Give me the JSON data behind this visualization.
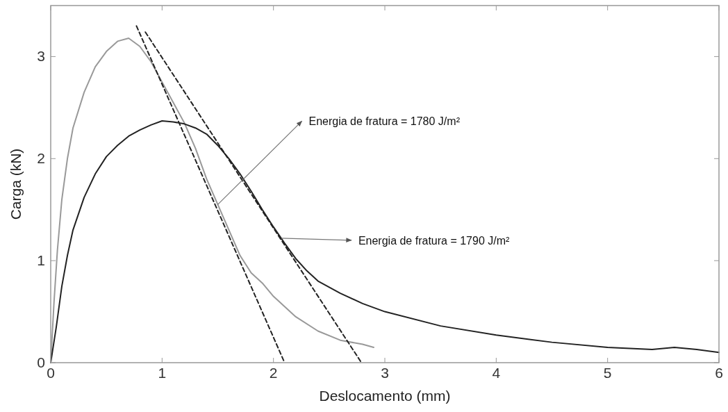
{
  "chart_data": {
    "type": "line",
    "xlabel": "Deslocamento (mm)",
    "ylabel": "Carga (kN)",
    "xlim": [
      0,
      6
    ],
    "ylim": [
      0,
      3.5
    ],
    "xticks": [
      0,
      1,
      2,
      3,
      4,
      5,
      6
    ],
    "yticks": [
      0,
      1,
      2,
      3
    ],
    "grid": false,
    "marker": "none",
    "series": [
      {
        "color": "#999999",
        "x": [
          0,
          0.03,
          0.06,
          0.1,
          0.15,
          0.2,
          0.3,
          0.4,
          0.5,
          0.6,
          0.7,
          0.8,
          0.9,
          1.0,
          1.1,
          1.2,
          1.3,
          1.4,
          1.5,
          1.6,
          1.7,
          1.8,
          1.9,
          2.0,
          2.2,
          2.4,
          2.6,
          2.8,
          2.9
        ],
        "values": [
          0,
          0.6,
          1.1,
          1.6,
          2.0,
          2.3,
          2.65,
          2.9,
          3.05,
          3.15,
          3.18,
          3.1,
          2.95,
          2.75,
          2.55,
          2.35,
          2.1,
          1.8,
          1.55,
          1.3,
          1.05,
          0.88,
          0.78,
          0.65,
          0.45,
          0.31,
          0.22,
          0.18,
          0.15
        ]
      },
      {
        "color": "#222222",
        "x": [
          0,
          0.05,
          0.1,
          0.15,
          0.2,
          0.3,
          0.4,
          0.5,
          0.6,
          0.7,
          0.8,
          0.9,
          1.0,
          1.1,
          1.2,
          1.3,
          1.4,
          1.5,
          1.6,
          1.7,
          1.8,
          1.9,
          2.0,
          2.1,
          2.2,
          2.3,
          2.4,
          2.6,
          2.8,
          3.0,
          3.5,
          4.0,
          4.5,
          5.0,
          5.4,
          5.6,
          5.8,
          6.0
        ],
        "values": [
          0,
          0.35,
          0.75,
          1.05,
          1.3,
          1.62,
          1.85,
          2.02,
          2.13,
          2.22,
          2.28,
          2.33,
          2.37,
          2.36,
          2.34,
          2.3,
          2.24,
          2.13,
          2.0,
          1.85,
          1.68,
          1.5,
          1.33,
          1.17,
          1.02,
          0.9,
          0.8,
          0.68,
          0.58,
          0.5,
          0.36,
          0.27,
          0.2,
          0.15,
          0.13,
          0.15,
          0.13,
          0.1
        ]
      },
      {
        "color": "#222222",
        "line_style": "dashed",
        "x": [
          0.77,
          2.1
        ],
        "values": [
          3.3,
          0
        ]
      },
      {
        "color": "#222222",
        "line_style": "dashed",
        "x": [
          0.85,
          2.79
        ],
        "values": [
          3.24,
          0
        ]
      }
    ],
    "annotations": [
      {
        "text": "Energia de fratura = 1780 J/m²",
        "x": 1.5,
        "y": 1.55
      },
      {
        "text": "Energia de fratura = 1790 J/m²",
        "x": 2.07,
        "y": 1.22
      }
    ]
  }
}
